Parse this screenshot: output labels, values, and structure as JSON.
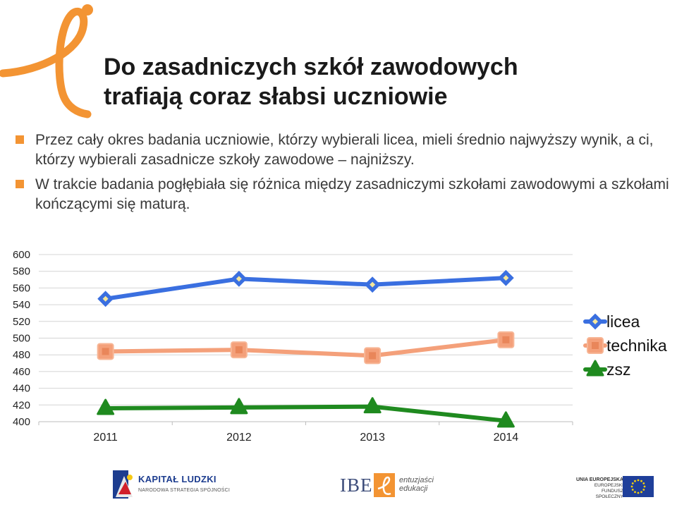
{
  "slide": {
    "title_line1": "Do zasadniczych szkół zawodowych",
    "title_line2": "trafiają coraz słabsi uczniowie",
    "bullets": [
      "Przez cały okres badania uczniowie, którzy wybierali licea, mieli średnio najwyższy wynik, a ci, którzy wybierali zasadnicze szkoły zawodowe – najniższy.",
      "W trakcie badania pogłębiała się różnica między zasadniczymi szkołami zawodowymi a szkołami kończącymi się maturą."
    ],
    "bullet_color": "#f39433",
    "logo_icon": "orange-e-logo-icon"
  },
  "chart_data": {
    "type": "line",
    "categories": [
      "2011",
      "2012",
      "2013",
      "2014"
    ],
    "series": [
      {
        "name": "licea",
        "values": [
          547,
          571,
          564,
          572
        ],
        "color": "#3a6fe0",
        "marker": "diamond"
      },
      {
        "name": "technika",
        "values": [
          484,
          486,
          479,
          498
        ],
        "color": "#f4a07a",
        "marker": "square"
      },
      {
        "name": "zsz",
        "values": [
          416,
          417,
          418,
          401
        ],
        "color": "#1f8a1f",
        "marker": "triangle"
      }
    ],
    "yticks": [
      "400",
      "420",
      "440",
      "460",
      "480",
      "500",
      "520",
      "540",
      "560",
      "580",
      "600"
    ],
    "ylim": [
      400,
      600
    ],
    "grid": true,
    "legend": "right"
  },
  "footer": {
    "kapital_title": "KAPITAŁ LUDZKI",
    "kapital_sub": "NARODOWA STRATEGIA SPÓJNOŚCI",
    "ibe": "IBE",
    "ibe_sub1": "entuzjaści",
    "ibe_sub2": "edukacji",
    "ue_line1": "UNIA EUROPEJSKA",
    "ue_line2": "EUROPEJSKI",
    "ue_line3": "FUNDUSZ SPOŁECZNY"
  }
}
